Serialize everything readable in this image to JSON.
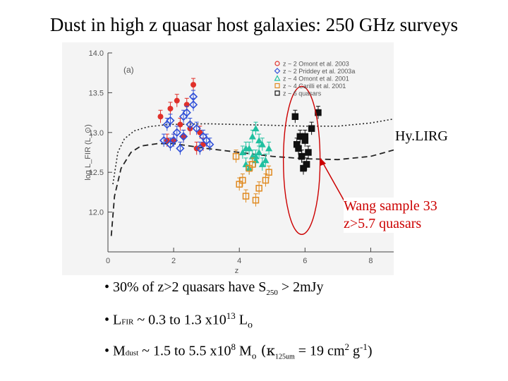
{
  "title": "Dust in high z quasar host galaxies: 250 GHz surveys",
  "chart_data": {
    "type": "scatter",
    "panel_label": "(a)",
    "xlabel": "z",
    "ylabel": "log L_FIR (L_⊙)",
    "xlim": [
      0,
      8.7
    ],
    "ylim": [
      11.5,
      14.0
    ],
    "xticks": [
      "0",
      "2",
      "4",
      "6",
      "8"
    ],
    "yticks": [
      "12.0",
      "12.5",
      "13.0",
      "13.5",
      "14.0"
    ],
    "legend_position": "top-right",
    "legend": [
      {
        "label": "z ~ 2  Omont et al. 2003",
        "color": "#e0302a",
        "marker": "circle"
      },
      {
        "label": "z ~ 2  Priddey et al. 2003a",
        "color": "#3050d8",
        "marker": "diamond"
      },
      {
        "label": "z ~ 4  Omont et al. 2001",
        "color": "#20c0a0",
        "marker": "triangle"
      },
      {
        "label": "z ~ 4  Carilli et al. 2001",
        "color": "#e08a20",
        "marker": "square"
      },
      {
        "label": "z ~ 6  quasars",
        "color": "#111111",
        "marker": "square"
      }
    ],
    "series": [
      {
        "name": "Omont et al. 2003",
        "color": "#e0302a",
        "marker": "circle",
        "x": [
          1.6,
          1.9,
          2.2,
          2.3,
          2.5,
          2.6,
          2.8,
          2.0,
          2.4,
          2.7,
          1.8,
          2.1,
          2.9
        ],
        "y": [
          13.2,
          13.3,
          13.1,
          12.95,
          13.05,
          13.6,
          13.0,
          12.9,
          13.35,
          12.8,
          12.9,
          13.4,
          12.85
        ]
      },
      {
        "name": "Priddey et al. 2003a",
        "color": "#3050d8",
        "marker": "diamond",
        "x": [
          1.7,
          1.9,
          2.1,
          2.3,
          2.5,
          2.7,
          2.9,
          3.1,
          2.6,
          2.2,
          1.8,
          2.4,
          2.8,
          3.0,
          2.0,
          2.6,
          1.9,
          2.3
        ],
        "y": [
          12.9,
          12.85,
          13.0,
          13.2,
          13.1,
          13.05,
          12.95,
          12.85,
          13.45,
          12.8,
          13.1,
          13.25,
          12.8,
          12.9,
          12.9,
          13.35,
          13.15,
          12.95
        ]
      },
      {
        "name": "Omont et al. 2001",
        "color": "#20c0a0",
        "marker": "triangle",
        "x": [
          4.1,
          4.3,
          4.5,
          4.7,
          4.4,
          4.6,
          4.2,
          4.8,
          4.5,
          4.3,
          4.9,
          4.4,
          4.6,
          4.7,
          4.2,
          4.5
        ],
        "y": [
          12.75,
          12.8,
          12.7,
          12.85,
          12.95,
          12.75,
          12.6,
          12.65,
          13.05,
          12.55,
          12.8,
          12.7,
          12.9,
          12.6,
          12.8,
          12.65
        ]
      },
      {
        "name": "Carilli et al. 2001",
        "color": "#e08a20",
        "marker": "square",
        "x": [
          3.9,
          4.1,
          4.3,
          4.6,
          4.9,
          4.2,
          4.5,
          4.8,
          4.0,
          4.4
        ],
        "y": [
          12.7,
          12.4,
          12.55,
          12.3,
          12.5,
          12.2,
          12.15,
          12.4,
          12.35,
          12.6
        ]
      },
      {
        "name": "z ~ 6 quasars",
        "color": "#111111",
        "marker": "square",
        "x": [
          5.7,
          5.85,
          6.0,
          6.2,
          5.8,
          5.9,
          6.05,
          6.4,
          5.95,
          6.1,
          5.75,
          6.0,
          5.9
        ],
        "y": [
          13.2,
          12.95,
          12.9,
          13.05,
          12.8,
          12.7,
          12.6,
          13.25,
          12.55,
          12.75,
          12.85,
          12.95,
          12.7
        ]
      }
    ],
    "curves": [
      {
        "name": "dotted-curve",
        "style": "dotted",
        "x": [
          0.15,
          0.3,
          0.5,
          0.8,
          1.2,
          1.8,
          3,
          4,
          5,
          6,
          7,
          8,
          8.7
        ],
        "y": [
          12.35,
          12.75,
          12.92,
          13.02,
          13.07,
          13.1,
          13.11,
          13.1,
          13.09,
          13.08,
          13.08,
          13.12,
          13.17
        ]
      },
      {
        "name": "dashed-curve",
        "style": "dashed",
        "x": [
          0.1,
          0.2,
          0.4,
          0.7,
          1.0,
          1.5,
          2,
          3,
          4,
          5,
          6,
          7,
          8,
          8.7
        ],
        "y": [
          11.7,
          12.2,
          12.55,
          12.75,
          12.83,
          12.86,
          12.86,
          12.8,
          12.75,
          12.7,
          12.67,
          12.66,
          12.7,
          12.78
        ]
      }
    ],
    "highlight_ellipse": {
      "center_x": 5.9,
      "center_y": 12.65,
      "color": "#cc0000"
    },
    "labels": {
      "hylirg": "Hy.LIRG",
      "wang_line1": "Wang sample 33",
      "wang_line2": "z>5.7 quasars"
    }
  },
  "bullets": {
    "b1": {
      "pre": "• 30% of z>2 quasars have S",
      "sub": "250",
      "post": " > 2mJy"
    },
    "b2": {
      "pre": "• L",
      "sub": "FIR",
      "mid": " ~ 0.3 to 1.3 x10",
      "sup": "13",
      "post": " L",
      "sub2": "o"
    },
    "b3": {
      "pre": "• M",
      "sub": "dust",
      "mid": " ~ 1.5 to 5.5 x10",
      "sup": "8",
      "mid2": "  M",
      "sub2": "o",
      "mid3": "  (κ",
      "sub3": "125um",
      "mid4": " = 19 cm",
      "sup2": "2",
      "mid5": " g",
      "sup3": "-1",
      "post": ")"
    }
  }
}
